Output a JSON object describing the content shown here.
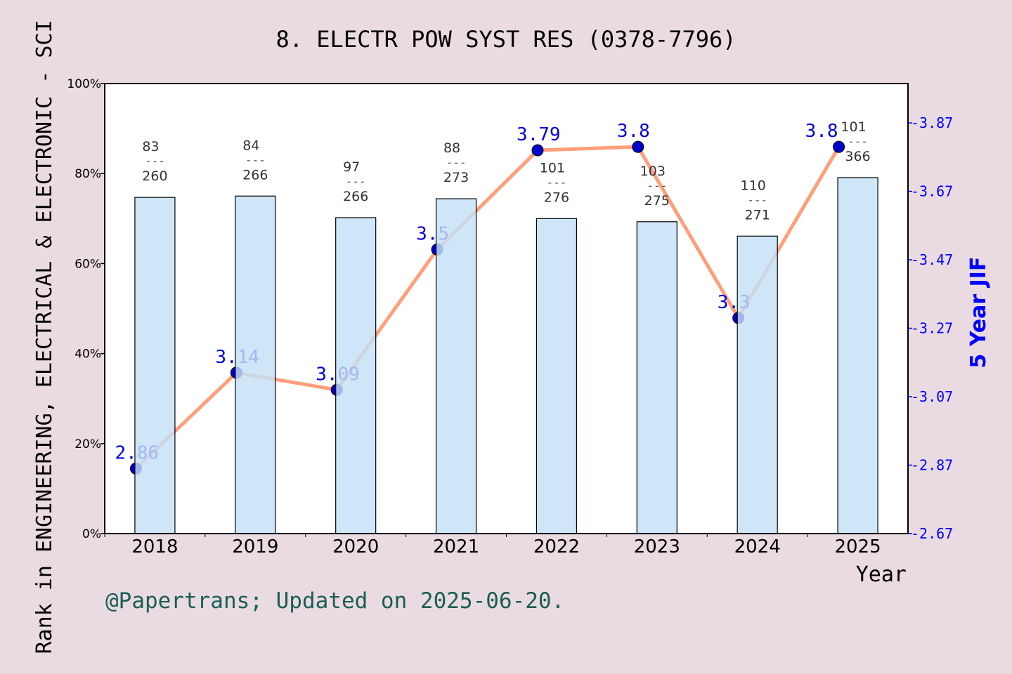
{
  "chart_data": {
    "type": "bar+line",
    "title": "8. ELECTR POW SYST RES (0378-7796)",
    "xlabel": "Year",
    "ylabel_left": "Rank in ENGINEERING, ELECTRICAL & ELECTRONIC - SCI",
    "ylabel_right": "5 Year JIF",
    "categories": [
      "2018",
      "2019",
      "2020",
      "2021",
      "2022",
      "2023",
      "2024",
      "2025"
    ],
    "left_axis": {
      "ylim": [
        0,
        100
      ],
      "ticks": [
        "0%",
        "20%",
        "40%",
        "60%",
        "80%",
        "100%"
      ],
      "tick_values": [
        0,
        20,
        40,
        60,
        80,
        100
      ]
    },
    "right_axis": {
      "ylim": [
        2.67,
        3.985
      ],
      "ticks": [
        "2.67",
        "2.87",
        "3.07",
        "3.27",
        "3.47",
        "3.67",
        "3.87"
      ],
      "tick_values": [
        2.67,
        2.87,
        3.07,
        3.27,
        3.47,
        3.67,
        3.87
      ]
    },
    "bars": {
      "values_percent": [
        74.7,
        75.0,
        70.2,
        74.4,
        70.0,
        69.3,
        66.1,
        79.1
      ],
      "rank": [
        "83",
        "84",
        "97",
        "88",
        "101",
        "103",
        "110",
        "101"
      ],
      "total": [
        "260",
        "266",
        "266",
        "273",
        "276",
        "275",
        "271",
        "366"
      ],
      "separator": "---",
      "color": "#c5e0f7"
    },
    "line": {
      "values": [
        2.86,
        3.14,
        3.09,
        3.5,
        3.79,
        3.8,
        3.3,
        3.8
      ],
      "labels": [
        "2.86",
        "3.14",
        "3.09",
        "3.5",
        "3.79",
        "3.8",
        "3.3",
        "3.8"
      ],
      "line_color": "#ff9f7a",
      "marker_color": "#0000cc"
    },
    "background": "#eadbe3",
    "grid": false
  },
  "footer": "@Papertrans; Updated on 2025-06-20."
}
